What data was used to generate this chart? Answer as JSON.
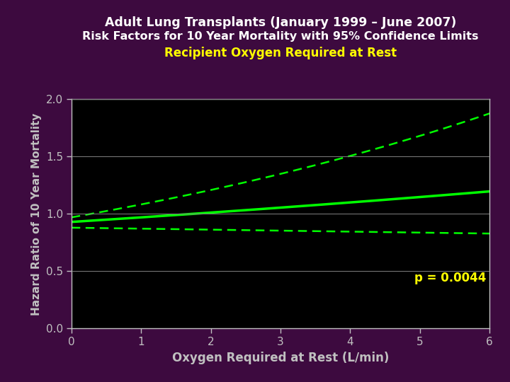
{
  "title_line1": "Adult Lung Transplants",
  "title_line1_suffix": " (January 1999 – June 2007)",
  "title_line2": "Risk Factors for 10 Year Mortality with 95% Confidence Limits",
  "title_line3": "Recipient Oxygen Required at Rest",
  "xlabel": "Oxygen Required at Rest (L/min)",
  "ylabel": "Hazard Ratio of 10 Year Mortality",
  "pvalue": "p = 0.0044",
  "bg_color": "#3d0a3f",
  "plot_bg_color": "#000000",
  "line_color": "#00ff00",
  "ci_color": "#00ff00",
  "title1_color": "#ffffff",
  "title3_color": "#ffff00",
  "pvalue_color": "#ffff00",
  "tick_color": "#c0c0c0",
  "grid_color": "#808080",
  "xmin": 0,
  "xmax": 6,
  "ymin": 0.0,
  "ymax": 2.0,
  "yticks": [
    0.0,
    0.5,
    1.0,
    1.5,
    2.0
  ],
  "xticks": [
    0,
    1,
    2,
    3,
    4,
    5,
    6
  ]
}
